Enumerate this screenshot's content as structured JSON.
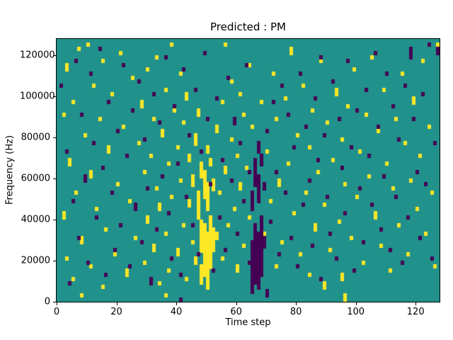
{
  "figure": {
    "background": "#ffffff"
  },
  "chart_data": {
    "type": "heatmap",
    "title": "Predicted : PM",
    "xlabel": "Time step",
    "ylabel": "Frequency (Hz)",
    "xlim": [
      0,
      128
    ],
    "ylim": [
      0,
      128000
    ],
    "x_ticks": [
      0,
      20,
      40,
      60,
      80,
      100,
      120
    ],
    "y_ticks": [
      0,
      20000,
      40000,
      60000,
      80000,
      100000,
      120000
    ],
    "grid": false,
    "legend": "none",
    "n_cols": 128,
    "n_rows": 64,
    "freq_bin_hz": 2000,
    "colormap": "viridis",
    "colors": {
      "background": "#21918c",
      "high": "#fde725",
      "low": "#440154",
      "axis": "#000000"
    },
    "encoding": "runs are [col, row_start, row_end], rows counted from bottom (row 0 = 0 Hz)",
    "cells_high": [
      [
        2,
        20,
        21
      ],
      [
        2,
        45,
        45
      ],
      [
        3,
        10,
        10
      ],
      [
        3,
        56,
        57
      ],
      [
        4,
        33,
        34
      ],
      [
        5,
        5,
        5
      ],
      [
        5,
        48,
        48
      ],
      [
        6,
        26,
        26
      ],
      [
        7,
        61,
        61
      ],
      [
        8,
        1,
        1
      ],
      [
        8,
        14,
        15
      ],
      [
        9,
        40,
        40
      ],
      [
        10,
        62,
        62
      ],
      [
        11,
        8,
        8
      ],
      [
        11,
        30,
        31
      ],
      [
        12,
        52,
        52
      ],
      [
        13,
        22,
        22
      ],
      [
        14,
        44,
        44
      ],
      [
        15,
        3,
        3
      ],
      [
        15,
        58,
        58
      ],
      [
        16,
        17,
        17
      ],
      [
        17,
        36,
        37
      ],
      [
        18,
        50,
        50
      ],
      [
        19,
        11,
        11
      ],
      [
        20,
        28,
        28
      ],
      [
        21,
        60,
        60
      ],
      [
        22,
        42,
        42
      ],
      [
        23,
        6,
        7
      ],
      [
        24,
        24,
        24
      ],
      [
        25,
        54,
        54
      ],
      [
        26,
        15,
        15
      ],
      [
        27,
        38,
        38
      ],
      [
        28,
        47,
        48
      ],
      [
        29,
        9,
        9
      ],
      [
        29,
        31,
        31
      ],
      [
        30,
        19,
        20
      ],
      [
        30,
        56,
        56
      ],
      [
        31,
        35,
        35
      ],
      [
        32,
        12,
        13
      ],
      [
        32,
        44,
        44
      ],
      [
        33,
        27,
        27
      ],
      [
        33,
        59,
        59
      ],
      [
        34,
        4,
        4
      ],
      [
        34,
        22,
        23
      ],
      [
        35,
        40,
        41
      ],
      [
        36,
        1,
        1
      ],
      [
        36,
        16,
        16
      ],
      [
        36,
        51,
        51
      ],
      [
        37,
        7,
        7
      ],
      [
        37,
        33,
        33
      ],
      [
        38,
        25,
        25
      ],
      [
        38,
        62,
        62
      ],
      [
        39,
        46,
        46
      ],
      [
        40,
        11,
        12
      ],
      [
        40,
        37,
        37
      ],
      [
        41,
        29,
        29
      ],
      [
        41,
        55,
        55
      ],
      [
        42,
        18,
        18
      ],
      [
        42,
        43,
        43
      ],
      [
        43,
        5,
        5
      ],
      [
        43,
        49,
        50
      ],
      [
        44,
        23,
        24
      ],
      [
        44,
        34,
        35
      ],
      [
        45,
        14,
        14
      ],
      [
        45,
        28,
        30
      ],
      [
        46,
        9,
        10
      ],
      [
        46,
        38,
        40
      ],
      [
        47,
        20,
        26
      ],
      [
        47,
        45,
        46
      ],
      [
        48,
        4,
        8
      ],
      [
        48,
        12,
        19
      ],
      [
        48,
        30,
        33
      ],
      [
        49,
        6,
        18
      ],
      [
        49,
        25,
        31
      ],
      [
        50,
        3,
        16
      ],
      [
        50,
        22,
        28
      ],
      [
        50,
        36,
        37
      ],
      [
        51,
        8,
        20
      ],
      [
        51,
        33,
        34
      ],
      [
        52,
        12,
        17
      ],
      [
        52,
        27,
        29
      ],
      [
        53,
        15,
        16
      ],
      [
        53,
        41,
        42
      ],
      [
        54,
        26,
        26
      ],
      [
        55,
        10,
        10
      ],
      [
        55,
        48,
        48
      ],
      [
        56,
        31,
        32
      ],
      [
        56,
        62,
        62
      ],
      [
        57,
        18,
        18
      ],
      [
        58,
        39,
        39
      ],
      [
        58,
        53,
        53
      ],
      [
        59,
        22,
        22
      ],
      [
        60,
        7,
        8
      ],
      [
        60,
        35,
        35
      ],
      [
        61,
        27,
        28
      ],
      [
        61,
        50,
        50
      ],
      [
        62,
        13,
        13
      ],
      [
        62,
        45,
        45
      ],
      [
        63,
        32,
        32
      ],
      [
        64,
        20,
        20
      ],
      [
        64,
        57,
        57
      ],
      [
        65,
        42,
        42
      ],
      [
        66,
        10,
        10
      ],
      [
        67,
        30,
        30
      ],
      [
        68,
        48,
        48
      ],
      [
        69,
        16,
        16
      ],
      [
        70,
        36,
        36
      ],
      [
        71,
        24,
        24
      ],
      [
        72,
        55,
        55
      ],
      [
        73,
        8,
        8
      ],
      [
        73,
        44,
        44
      ],
      [
        74,
        28,
        29
      ],
      [
        75,
        14,
        14
      ],
      [
        76,
        49,
        49
      ],
      [
        77,
        33,
        33
      ],
      [
        78,
        60,
        61
      ],
      [
        79,
        21,
        21
      ],
      [
        80,
        40,
        40
      ],
      [
        81,
        11,
        11
      ],
      [
        82,
        52,
        52
      ],
      [
        83,
        26,
        26
      ],
      [
        84,
        6,
        6
      ],
      [
        84,
        37,
        37
      ],
      [
        85,
        46,
        46
      ],
      [
        86,
        17,
        18
      ],
      [
        87,
        31,
        31
      ],
      [
        88,
        58,
        58
      ],
      [
        89,
        3,
        4
      ],
      [
        89,
        23,
        23
      ],
      [
        90,
        43,
        43
      ],
      [
        91,
        12,
        12
      ],
      [
        92,
        34,
        34
      ],
      [
        93,
        50,
        51
      ],
      [
        94,
        19,
        19
      ],
      [
        95,
        5,
        6
      ],
      [
        95,
        39,
        39
      ],
      [
        96,
        0,
        1
      ],
      [
        96,
        28,
        28
      ],
      [
        97,
        47,
        47
      ],
      [
        98,
        15,
        15
      ],
      [
        99,
        56,
        56
      ],
      [
        100,
        25,
        25
      ],
      [
        101,
        36,
        36
      ],
      [
        102,
        9,
        9
      ],
      [
        103,
        45,
        45
      ],
      [
        104,
        30,
        30
      ],
      [
        105,
        59,
        59
      ],
      [
        106,
        20,
        21
      ],
      [
        107,
        41,
        41
      ],
      [
        108,
        13,
        13
      ],
      [
        109,
        51,
        51
      ],
      [
        110,
        33,
        33
      ],
      [
        111,
        7,
        7
      ],
      [
        112,
        27,
        27
      ],
      [
        113,
        44,
        44
      ],
      [
        114,
        18,
        18
      ],
      [
        115,
        55,
        55
      ],
      [
        116,
        38,
        38
      ],
      [
        117,
        11,
        11
      ],
      [
        118,
        29,
        29
      ],
      [
        119,
        48,
        49
      ],
      [
        120,
        22,
        22
      ],
      [
        121,
        35,
        35
      ],
      [
        122,
        58,
        58
      ],
      [
        123,
        16,
        16
      ],
      [
        124,
        42,
        42
      ],
      [
        125,
        26,
        26
      ],
      [
        126,
        8,
        8
      ],
      [
        127,
        61,
        62
      ]
    ],
    "cells_low": [
      [
        1,
        52,
        52
      ],
      [
        3,
        36,
        36
      ],
      [
        4,
        4,
        4
      ],
      [
        5,
        24,
        24
      ],
      [
        6,
        58,
        58
      ],
      [
        7,
        15,
        15
      ],
      [
        8,
        45,
        45
      ],
      [
        9,
        29,
        30
      ],
      [
        10,
        9,
        9
      ],
      [
        11,
        55,
        55
      ],
      [
        12,
        38,
        38
      ],
      [
        13,
        20,
        20
      ],
      [
        14,
        61,
        61
      ],
      [
        15,
        32,
        32
      ],
      [
        16,
        6,
        6
      ],
      [
        17,
        48,
        48
      ],
      [
        18,
        26,
        26
      ],
      [
        19,
        12,
        12
      ],
      [
        20,
        41,
        41
      ],
      [
        21,
        18,
        18
      ],
      [
        22,
        57,
        57
      ],
      [
        23,
        35,
        35
      ],
      [
        24,
        8,
        8
      ],
      [
        25,
        46,
        46
      ],
      [
        26,
        22,
        23
      ],
      [
        27,
        53,
        53
      ],
      [
        28,
        14,
        14
      ],
      [
        29,
        39,
        39
      ],
      [
        30,
        27,
        27
      ],
      [
        31,
        4,
        5
      ],
      [
        32,
        50,
        50
      ],
      [
        33,
        17,
        17
      ],
      [
        34,
        43,
        43
      ],
      [
        35,
        30,
        30
      ],
      [
        36,
        59,
        59
      ],
      [
        37,
        21,
        21
      ],
      [
        38,
        10,
        10
      ],
      [
        39,
        47,
        47
      ],
      [
        40,
        33,
        33
      ],
      [
        41,
        0,
        0
      ],
      [
        41,
        6,
        6
      ],
      [
        42,
        56,
        56
      ],
      [
        43,
        25,
        25
      ],
      [
        44,
        40,
        40
      ],
      [
        45,
        18,
        18
      ],
      [
        46,
        51,
        51
      ],
      [
        47,
        11,
        11
      ],
      [
        48,
        36,
        36
      ],
      [
        49,
        60,
        60
      ],
      [
        50,
        44,
        44
      ],
      [
        51,
        28,
        28
      ],
      [
        52,
        7,
        7
      ],
      [
        53,
        49,
        49
      ],
      [
        54,
        20,
        20
      ],
      [
        55,
        34,
        34
      ],
      [
        56,
        12,
        12
      ],
      [
        57,
        54,
        54
      ],
      [
        58,
        29,
        29
      ],
      [
        59,
        43,
        44
      ],
      [
        60,
        16,
        16
      ],
      [
        61,
        38,
        38
      ],
      [
        62,
        24,
        24
      ],
      [
        63,
        57,
        57
      ],
      [
        64,
        9,
        9
      ],
      [
        64,
        31,
        31
      ],
      [
        65,
        2,
        14
      ],
      [
        65,
        22,
        26
      ],
      [
        66,
        4,
        18
      ],
      [
        66,
        28,
        34
      ],
      [
        67,
        3,
        16
      ],
      [
        67,
        24,
        30
      ],
      [
        67,
        36,
        38
      ],
      [
        68,
        6,
        20
      ],
      [
        68,
        33,
        35
      ],
      [
        69,
        13,
        15
      ],
      [
        69,
        27,
        28
      ],
      [
        70,
        1,
        2
      ],
      [
        70,
        41,
        41
      ],
      [
        71,
        19,
        19
      ],
      [
        72,
        48,
        48
      ],
      [
        73,
        31,
        31
      ],
      [
        74,
        11,
        11
      ],
      [
        75,
        52,
        52
      ],
      [
        76,
        26,
        26
      ],
      [
        77,
        45,
        45
      ],
      [
        78,
        15,
        15
      ],
      [
        79,
        37,
        37
      ],
      [
        80,
        8,
        8
      ],
      [
        81,
        55,
        55
      ],
      [
        82,
        23,
        23
      ],
      [
        83,
        42,
        42
      ],
      [
        84,
        29,
        29
      ],
      [
        85,
        13,
        13
      ],
      [
        86,
        49,
        49
      ],
      [
        87,
        34,
        34
      ],
      [
        88,
        5,
        5
      ],
      [
        88,
        59,
        59
      ],
      [
        89,
        40,
        40
      ],
      [
        90,
        25,
        25
      ],
      [
        91,
        16,
        16
      ],
      [
        92,
        53,
        53
      ],
      [
        93,
        10,
        10
      ],
      [
        94,
        44,
        44
      ],
      [
        95,
        32,
        32
      ],
      [
        96,
        21,
        21
      ],
      [
        97,
        58,
        58
      ],
      [
        98,
        37,
        37
      ],
      [
        99,
        7,
        7
      ],
      [
        100,
        46,
        46
      ],
      [
        101,
        27,
        27
      ],
      [
        102,
        14,
        14
      ],
      [
        103,
        51,
        51
      ],
      [
        104,
        35,
        35
      ],
      [
        105,
        23,
        23
      ],
      [
        106,
        60,
        60
      ],
      [
        107,
        42,
        42
      ],
      [
        108,
        17,
        17
      ],
      [
        109,
        30,
        30
      ],
      [
        110,
        55,
        55
      ],
      [
        111,
        12,
        12
      ],
      [
        112,
        47,
        47
      ],
      [
        113,
        25,
        25
      ],
      [
        114,
        39,
        39
      ],
      [
        115,
        9,
        9
      ],
      [
        116,
        52,
        52
      ],
      [
        117,
        20,
        20
      ],
      [
        118,
        59,
        61
      ],
      [
        119,
        44,
        44
      ],
      [
        120,
        31,
        31
      ],
      [
        121,
        15,
        15
      ],
      [
        122,
        50,
        50
      ],
      [
        123,
        28,
        28
      ],
      [
        124,
        62,
        62
      ],
      [
        125,
        10,
        10
      ],
      [
        126,
        38,
        38
      ],
      [
        127,
        60,
        61
      ]
    ]
  }
}
